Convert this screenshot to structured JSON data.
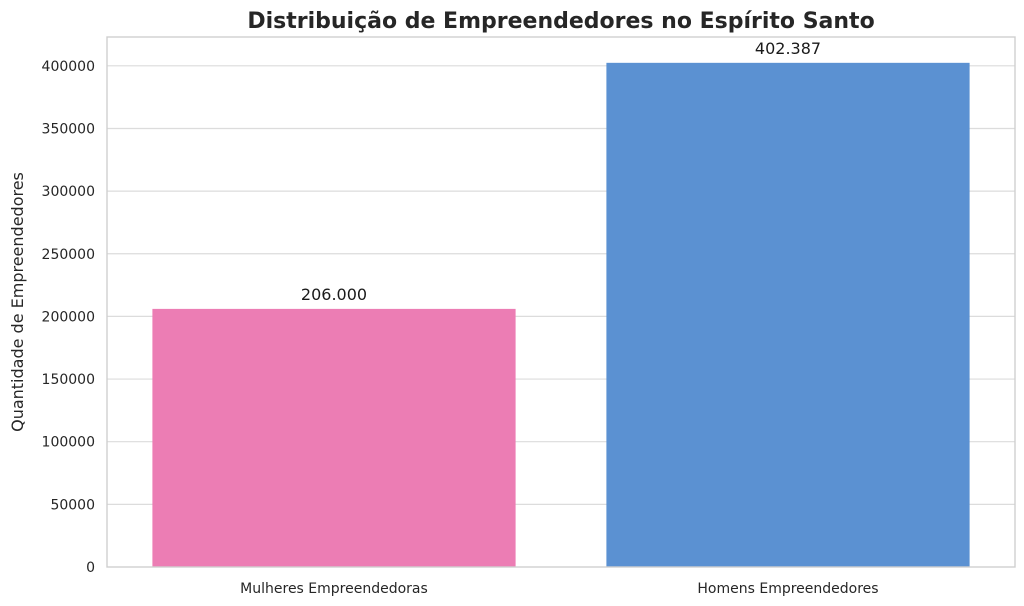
{
  "chart_data": {
    "type": "bar",
    "title": "Distribuição de Empreendedores no Espírito Santo",
    "xlabel": "",
    "ylabel": "Quantidade de Empreendedores",
    "categories": [
      "Mulheres Empreendedoras",
      "Homens Empreendedores"
    ],
    "values": [
      206000,
      402387
    ],
    "data_labels": [
      "206.000",
      "402.387"
    ],
    "colors": [
      "#ec7db4",
      "#5b91d2"
    ],
    "ylim": [
      0,
      423000
    ],
    "yticks": [
      0,
      50000,
      100000,
      150000,
      200000,
      250000,
      300000,
      350000,
      400000
    ],
    "ytick_labels": [
      "0",
      "50000",
      "100000",
      "150000",
      "200000",
      "250000",
      "300000",
      "350000",
      "400000"
    ],
    "grid": true,
    "legend": "none"
  }
}
